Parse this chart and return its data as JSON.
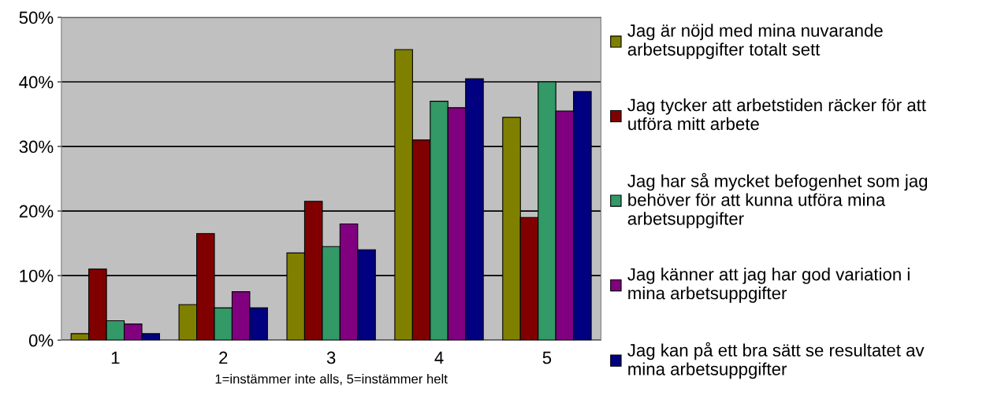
{
  "chart_data": {
    "type": "bar",
    "categories": [
      "1",
      "2",
      "3",
      "4",
      "5"
    ],
    "xlabel": "1=instämmer inte alls, 5=instämmer helt",
    "series": [
      {
        "name": "Jag är nöjd med mina nuvarande arbetsuppgifter totalt sett",
        "color": "#808000",
        "values": [
          1,
          5.5,
          13.5,
          45,
          34.5
        ]
      },
      {
        "name": "Jag tycker att arbetstiden räcker för att utföra mitt arbete",
        "color": "#800000",
        "values": [
          11,
          16.5,
          21.5,
          31,
          19
        ]
      },
      {
        "name": "Jag har så mycket befogenhet som jag behöver för att kunna utföra mina arbetsuppgifter",
        "color": "#339966",
        "values": [
          3,
          5,
          14.5,
          37,
          40
        ]
      },
      {
        "name": "Jag känner att jag har god variation i mina arbetsuppgifter",
        "color": "#800080",
        "values": [
          2.5,
          7.5,
          18,
          36,
          35.5
        ]
      },
      {
        "name": "Jag kan på ett bra sätt se resultatet av mina arbetsuppgifter",
        "color": "#000080",
        "values": [
          1,
          5,
          14,
          40.5,
          38.5
        ]
      }
    ],
    "ylim": [
      0,
      50
    ],
    "yticks": [
      {
        "value": 0,
        "label": "0%"
      },
      {
        "value": 10,
        "label": "10%"
      },
      {
        "value": 20,
        "label": "20%"
      },
      {
        "value": 30,
        "label": "30%"
      },
      {
        "value": 40,
        "label": "40%"
      },
      {
        "value": 50,
        "label": "50%"
      }
    ],
    "grid": "y",
    "legend": "right"
  }
}
